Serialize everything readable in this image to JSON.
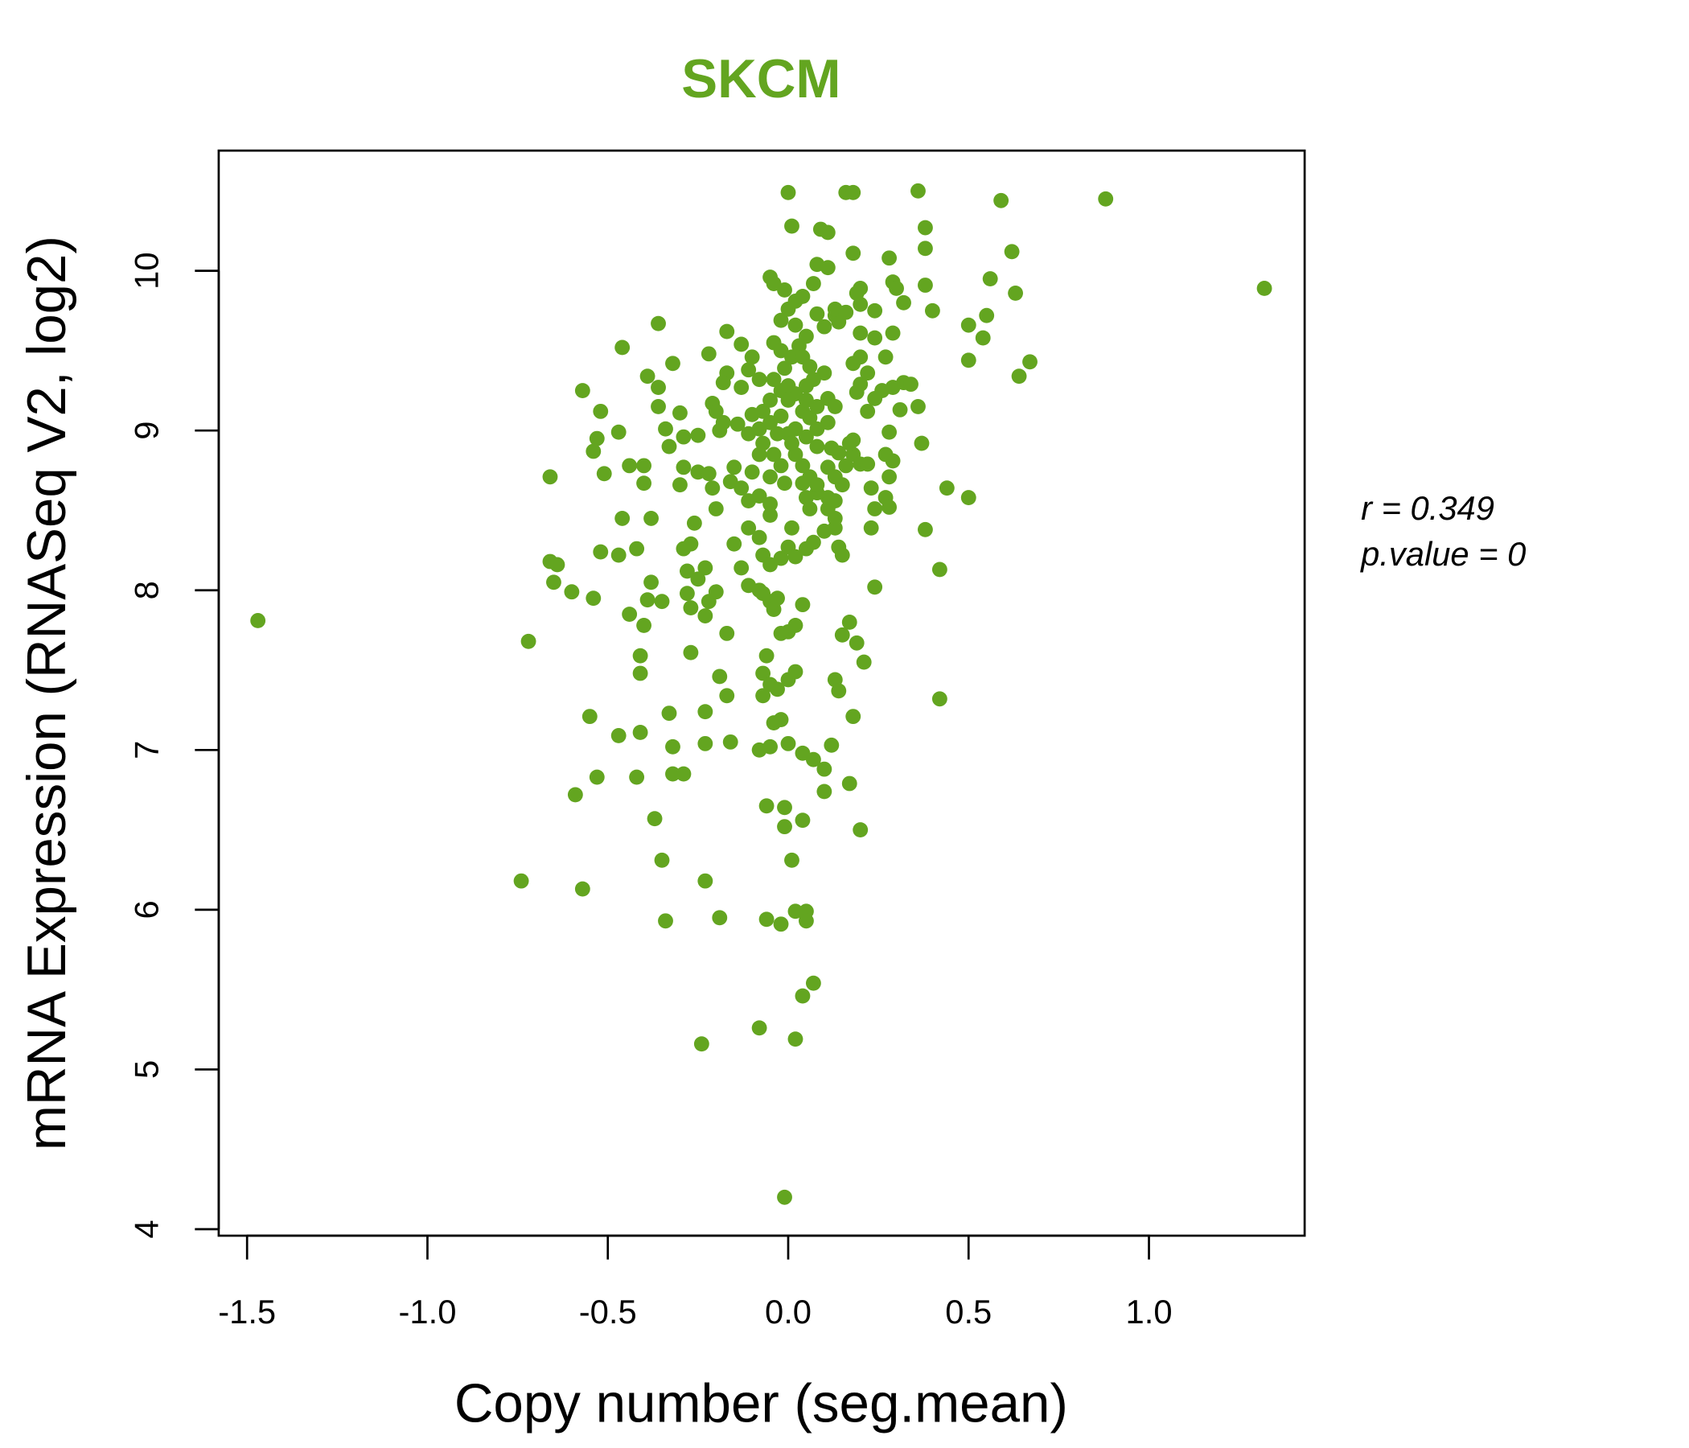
{
  "chart_data": {
    "type": "scatter",
    "title": "SKCM",
    "xlabel": "Copy number (seg.mean)",
    "ylabel": "mRNA Expression (RNASeq V2, log2)",
    "xlim": [
      -1.58,
      1.43
    ],
    "ylim": [
      4.0,
      10.6
    ],
    "x_ticks": [
      -1.5,
      -1.0,
      -0.5,
      0.0,
      0.5,
      1.0
    ],
    "x_tick_labels": [
      "-1.5",
      "-1.0",
      "-0.5",
      "0.0",
      "0.5",
      "1.0"
    ],
    "y_ticks": [
      4,
      5,
      6,
      7,
      8,
      9,
      10
    ],
    "y_tick_labels": [
      "4",
      "5",
      "6",
      "7",
      "8",
      "9",
      "10"
    ],
    "annotations": {
      "r": "r = 0.349",
      "p": "p.value = 0"
    },
    "colors": {
      "point": "#63A520",
      "title": "#63A520"
    },
    "points": [
      [
        -1.47,
        7.81
      ],
      [
        -0.72,
        7.68
      ],
      [
        -0.74,
        6.18
      ],
      [
        -0.57,
        6.13
      ],
      [
        -0.59,
        6.72
      ],
      [
        -0.55,
        7.21
      ],
      [
        -0.53,
        6.83
      ],
      [
        -0.47,
        7.09
      ],
      [
        -0.42,
        6.83
      ],
      [
        -0.41,
        7.11
      ],
      [
        -0.37,
        6.57
      ],
      [
        -0.35,
        6.31
      ],
      [
        -0.34,
        5.93
      ],
      [
        -0.33,
        7.23
      ],
      [
        -0.32,
        7.02
      ],
      [
        -0.32,
        6.85
      ],
      [
        -0.29,
        6.85
      ],
      [
        -0.23,
        6.18
      ],
      [
        -0.19,
        5.95
      ],
      [
        -0.24,
        5.16
      ],
      [
        -0.08,
        5.26
      ],
      [
        -0.01,
        4.2
      ],
      [
        0.02,
        5.19
      ],
      [
        0.04,
        5.46
      ],
      [
        0.07,
        5.54
      ],
      [
        -0.06,
        5.94
      ],
      [
        -0.02,
        5.91
      ],
      [
        0.02,
        5.99
      ],
      [
        0.05,
        5.99
      ],
      [
        0.05,
        5.93
      ],
      [
        0.01,
        6.31
      ],
      [
        -0.01,
        6.52
      ],
      [
        -0.01,
        6.64
      ],
      [
        0.04,
        6.56
      ],
      [
        -0.06,
        6.65
      ],
      [
        0.1,
        6.74
      ],
      [
        0.17,
        6.79
      ],
      [
        0.2,
        6.5
      ],
      [
        0.12,
        7.03
      ],
      [
        0.1,
        6.88
      ],
      [
        0.07,
        6.94
      ],
      [
        0.04,
        6.98
      ],
      [
        0.0,
        7.04
      ],
      [
        -0.05,
        7.02
      ],
      [
        -0.08,
        7.0
      ],
      [
        -0.16,
        7.05
      ],
      [
        -0.23,
        7.04
      ],
      [
        -0.23,
        7.24
      ],
      [
        -0.17,
        7.34
      ],
      [
        -0.19,
        7.46
      ],
      [
        -0.27,
        7.61
      ],
      [
        -0.41,
        7.59
      ],
      [
        -0.41,
        7.48
      ],
      [
        -0.4,
        7.78
      ],
      [
        -0.44,
        7.85
      ],
      [
        -0.39,
        7.94
      ],
      [
        -0.35,
        7.93
      ],
      [
        -0.38,
        8.05
      ],
      [
        -0.28,
        7.98
      ],
      [
        -0.27,
        7.89
      ],
      [
        -0.23,
        7.84
      ],
      [
        -0.22,
        7.93
      ],
      [
        -0.2,
        7.99
      ],
      [
        -0.17,
        7.73
      ],
      [
        -0.25,
        8.07
      ],
      [
        -0.23,
        8.14
      ],
      [
        -0.28,
        8.12
      ],
      [
        -0.29,
        8.26
      ],
      [
        -0.27,
        8.29
      ],
      [
        -0.26,
        8.42
      ],
      [
        -0.54,
        7.95
      ],
      [
        -0.6,
        7.99
      ],
      [
        -0.65,
        8.05
      ],
      [
        -0.66,
        8.18
      ],
      [
        -0.64,
        8.16
      ],
      [
        -0.52,
        8.24
      ],
      [
        -0.47,
        8.22
      ],
      [
        -0.42,
        8.26
      ],
      [
        -0.46,
        8.45
      ],
      [
        -0.38,
        8.45
      ],
      [
        -0.51,
        8.73
      ],
      [
        -0.66,
        8.71
      ],
      [
        -0.44,
        8.78
      ],
      [
        -0.4,
        8.78
      ],
      [
        -0.4,
        8.67
      ],
      [
        -0.54,
        8.87
      ],
      [
        -0.53,
        8.95
      ],
      [
        -0.47,
        8.99
      ],
      [
        -0.52,
        9.12
      ],
      [
        -0.57,
        9.25
      ],
      [
        -0.46,
        9.52
      ],
      [
        -0.36,
        9.67
      ],
      [
        -0.39,
        9.34
      ],
      [
        -0.36,
        9.27
      ],
      [
        -0.32,
        9.42
      ],
      [
        -0.36,
        9.15
      ],
      [
        -0.34,
        9.01
      ],
      [
        -0.3,
        9.11
      ],
      [
        -0.33,
        8.9
      ],
      [
        -0.29,
        8.77
      ],
      [
        -0.3,
        8.66
      ],
      [
        -0.29,
        8.96
      ],
      [
        -0.25,
        8.97
      ],
      [
        -0.25,
        8.74
      ],
      [
        -0.22,
        8.73
      ],
      [
        -0.21,
        8.64
      ],
      [
        -0.2,
        8.51
      ],
      [
        -0.22,
        9.48
      ],
      [
        -0.17,
        9.62
      ],
      [
        -0.17,
        9.36
      ],
      [
        -0.18,
        9.3
      ],
      [
        -0.21,
        9.17
      ],
      [
        -0.2,
        9.12
      ],
      [
        -0.19,
        9.0
      ],
      [
        -0.18,
        9.05
      ],
      [
        -0.15,
        8.77
      ],
      [
        -0.16,
        8.68
      ],
      [
        -0.13,
        9.54
      ],
      [
        -0.11,
        9.38
      ],
      [
        -0.1,
        9.46
      ],
      [
        -0.08,
        9.32
      ],
      [
        -0.13,
        9.27
      ],
      [
        -0.14,
        9.04
      ],
      [
        -0.11,
        8.98
      ],
      [
        -0.1,
        9.1
      ],
      [
        -0.07,
        9.12
      ],
      [
        -0.05,
        9.96
      ],
      [
        -0.04,
        9.92
      ],
      [
        -0.01,
        9.88
      ],
      [
        0.0,
        10.49
      ],
      [
        0.01,
        10.28
      ],
      [
        0.09,
        10.26
      ],
      [
        0.11,
        10.24
      ],
      [
        0.16,
        10.49
      ],
      [
        0.18,
        10.49
      ],
      [
        0.36,
        10.5
      ],
      [
        0.38,
        10.27
      ],
      [
        0.38,
        10.14
      ],
      [
        0.59,
        10.44
      ],
      [
        0.88,
        10.45
      ],
      [
        1.32,
        9.89
      ],
      [
        0.62,
        10.12
      ],
      [
        0.56,
        9.95
      ],
      [
        0.63,
        9.86
      ],
      [
        0.55,
        9.72
      ],
      [
        0.5,
        9.66
      ],
      [
        0.54,
        9.58
      ],
      [
        0.5,
        9.44
      ],
      [
        0.67,
        9.43
      ],
      [
        0.64,
        9.34
      ],
      [
        0.44,
        8.64
      ],
      [
        0.5,
        8.58
      ],
      [
        0.38,
        8.38
      ],
      [
        0.42,
        8.13
      ],
      [
        0.42,
        7.32
      ],
      [
        0.08,
        10.04
      ],
      [
        0.11,
        10.02
      ],
      [
        0.18,
        10.11
      ],
      [
        0.28,
        10.08
      ],
      [
        0.38,
        9.91
      ],
      [
        0.4,
        9.75
      ],
      [
        0.32,
        9.8
      ],
      [
        0.29,
        9.93
      ],
      [
        0.3,
        9.89
      ],
      [
        0.2,
        9.89
      ],
      [
        0.19,
        9.86
      ],
      [
        0.24,
        9.75
      ],
      [
        0.29,
        9.61
      ],
      [
        0.2,
        9.61
      ],
      [
        0.24,
        9.58
      ],
      [
        0.27,
        9.46
      ],
      [
        0.36,
        9.15
      ],
      [
        0.31,
        9.13
      ],
      [
        0.37,
        8.92
      ],
      [
        0.28,
        8.99
      ],
      [
        0.27,
        8.85
      ],
      [
        0.29,
        8.81
      ],
      [
        0.28,
        8.71
      ],
      [
        0.23,
        8.64
      ],
      [
        0.27,
        8.58
      ],
      [
        0.28,
        8.52
      ],
      [
        0.24,
        8.51
      ],
      [
        0.23,
        8.39
      ],
      [
        0.24,
        8.02
      ],
      [
        0.17,
        7.8
      ],
      [
        0.15,
        7.72
      ],
      [
        0.21,
        7.55
      ],
      [
        0.19,
        7.67
      ],
      [
        0.13,
        7.44
      ],
      [
        0.14,
        7.37
      ],
      [
        0.18,
        7.21
      ],
      [
        0.04,
        7.91
      ],
      [
        0.02,
        7.78
      ],
      [
        0.0,
        7.74
      ],
      [
        -0.02,
        7.73
      ],
      [
        -0.06,
        7.59
      ],
      [
        -0.07,
        7.48
      ],
      [
        -0.05,
        7.41
      ],
      [
        -0.03,
        7.38
      ],
      [
        0.0,
        7.44
      ],
      [
        0.02,
        7.49
      ],
      [
        -0.02,
        7.19
      ],
      [
        -0.04,
        7.17
      ],
      [
        -0.07,
        7.34
      ],
      [
        -0.05,
        7.93
      ],
      [
        -0.04,
        7.88
      ],
      [
        -0.07,
        7.98
      ],
      [
        -0.08,
        8.0
      ],
      [
        -0.03,
        7.95
      ],
      [
        -0.11,
        8.03
      ],
      [
        -0.13,
        8.14
      ],
      [
        -0.15,
        8.29
      ],
      [
        -0.11,
        8.39
      ],
      [
        -0.08,
        8.33
      ],
      [
        -0.07,
        8.22
      ],
      [
        -0.05,
        8.16
      ],
      [
        -0.02,
        8.2
      ],
      [
        0.0,
        8.27
      ],
      [
        0.02,
        8.21
      ],
      [
        0.05,
        8.26
      ],
      [
        0.07,
        8.3
      ],
      [
        0.1,
        8.37
      ],
      [
        0.13,
        8.39
      ],
      [
        0.14,
        8.27
      ],
      [
        0.15,
        8.22
      ],
      [
        0.13,
        8.45
      ],
      [
        0.11,
        8.51
      ],
      [
        0.11,
        8.58
      ],
      [
        0.08,
        8.61
      ],
      [
        0.05,
        8.58
      ],
      [
        0.01,
        8.39
      ],
      [
        -0.05,
        8.47
      ],
      [
        -0.05,
        8.54
      ],
      [
        -0.08,
        8.59
      ],
      [
        -0.11,
        8.56
      ],
      [
        -0.13,
        8.64
      ],
      [
        -0.1,
        8.74
      ],
      [
        -0.08,
        8.85
      ],
      [
        -0.07,
        8.92
      ],
      [
        -0.05,
        8.71
      ],
      [
        -0.02,
        8.78
      ],
      [
        -0.01,
        8.67
      ],
      [
        0.02,
        8.85
      ],
      [
        0.04,
        8.78
      ],
      [
        0.06,
        8.71
      ],
      [
        0.08,
        8.66
      ],
      [
        0.11,
        8.77
      ],
      [
        0.13,
        8.71
      ],
      [
        0.16,
        8.78
      ],
      [
        0.18,
        8.85
      ],
      [
        0.2,
        8.79
      ],
      [
        0.17,
        8.92
      ],
      [
        0.18,
        8.94
      ],
      [
        0.12,
        8.89
      ],
      [
        0.08,
        8.9
      ],
      [
        0.05,
        8.96
      ],
      [
        0.02,
        9.01
      ],
      [
        0.0,
        8.98
      ],
      [
        -0.03,
        8.98
      ],
      [
        -0.05,
        9.05
      ],
      [
        -0.08,
        9.01
      ],
      [
        -0.05,
        9.19
      ],
      [
        -0.02,
        9.25
      ],
      [
        -0.04,
        9.32
      ],
      [
        -0.01,
        9.39
      ],
      [
        0.01,
        9.46
      ],
      [
        0.03,
        9.53
      ],
      [
        0.05,
        9.59
      ],
      [
        0.02,
        9.66
      ],
      [
        -0.02,
        9.69
      ],
      [
        0.0,
        9.76
      ],
      [
        0.02,
        9.81
      ],
      [
        0.04,
        9.84
      ],
      [
        0.07,
        9.92
      ],
      [
        0.08,
        9.73
      ],
      [
        0.1,
        9.65
      ],
      [
        0.13,
        9.72
      ],
      [
        0.14,
        9.68
      ],
      [
        0.13,
        9.76
      ],
      [
        0.16,
        9.74
      ],
      [
        0.2,
        9.79
      ],
      [
        0.18,
        9.42
      ],
      [
        0.2,
        9.46
      ],
      [
        0.22,
        9.36
      ],
      [
        0.2,
        9.29
      ],
      [
        0.19,
        9.24
      ],
      [
        0.22,
        9.12
      ],
      [
        0.24,
        9.2
      ],
      [
        0.26,
        9.25
      ],
      [
        0.29,
        9.27
      ],
      [
        0.32,
        9.3
      ],
      [
        0.34,
        9.29
      ],
      [
        0.1,
        9.36
      ],
      [
        0.07,
        9.32
      ],
      [
        0.05,
        9.28
      ],
      [
        0.02,
        9.23
      ],
      [
        0.0,
        9.19
      ],
      [
        0.04,
        9.12
      ],
      [
        0.06,
        9.08
      ],
      [
        0.08,
        9.15
      ],
      [
        0.11,
        9.2
      ],
      [
        0.13,
        9.15
      ],
      [
        0.11,
        9.05
      ],
      [
        0.08,
        9.01
      ],
      [
        0.05,
        9.19
      ],
      [
        -0.04,
        9.55
      ],
      [
        -0.02,
        9.5
      ],
      [
        0.04,
        9.46
      ],
      [
        0.06,
        9.4
      ],
      [
        0.0,
        9.28
      ],
      [
        -0.02,
        9.09
      ],
      [
        0.01,
        8.92
      ],
      [
        -0.04,
        8.85
      ],
      [
        0.04,
        8.67
      ],
      [
        0.06,
        8.51
      ],
      [
        0.13,
        8.56
      ],
      [
        0.15,
        8.66
      ],
      [
        0.22,
        8.79
      ],
      [
        0.14,
        8.86
      ]
    ]
  }
}
